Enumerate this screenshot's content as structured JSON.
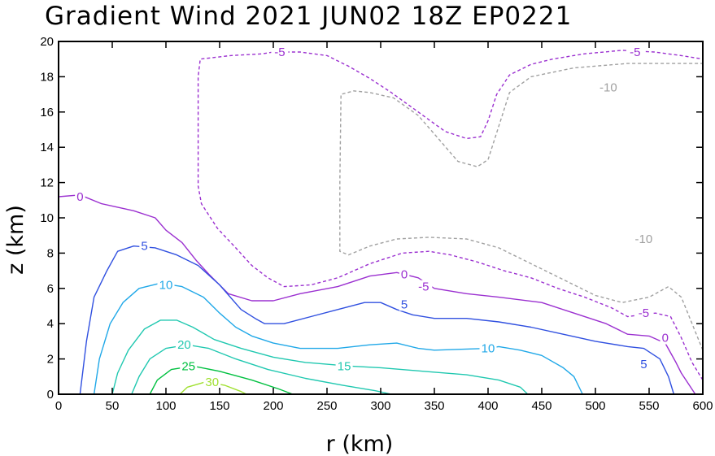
{
  "chart_data": {
    "type": "contour",
    "title": "Gradient Wind 2021 JUN02 18Z   EP0221",
    "xlabel": "r (km)",
    "ylabel": "z (km)",
    "xlim": [
      0,
      600
    ],
    "ylim": [
      0,
      20
    ],
    "xticks": [
      0,
      50,
      100,
      150,
      200,
      250,
      300,
      350,
      400,
      450,
      500,
      550,
      600
    ],
    "yticks": [
      0,
      2,
      4,
      6,
      8,
      10,
      12,
      14,
      16,
      18,
      20
    ],
    "contours": [
      {
        "level": -10,
        "label": "-10",
        "color": "#a0a0a0",
        "dashed": true,
        "segments": [
          [
            [
              600,
              2.5
            ],
            [
              590,
              4
            ],
            [
              580,
              5.5
            ],
            [
              568,
              6.1
            ],
            [
              550,
              5.5
            ],
            [
              525,
              5.2
            ],
            [
              500,
              5.6
            ],
            [
              470,
              6.5
            ],
            [
              440,
              7.4
            ],
            [
              410,
              8.3
            ],
            [
              380,
              8.8
            ],
            [
              345,
              8.9
            ],
            [
              315,
              8.8
            ],
            [
              290,
              8.4
            ],
            [
              270,
              7.9
            ],
            [
              262,
              8.1
            ],
            [
              262,
              12
            ],
            [
              263,
              17
            ],
            [
              275,
              17.2
            ],
            [
              290,
              17.1
            ],
            [
              312,
              16.8
            ],
            [
              335,
              15.8
            ],
            [
              355,
              14.4
            ],
            [
              372,
              13.2
            ],
            [
              390,
              12.9
            ],
            [
              400,
              13.3
            ],
            [
              410,
              15.2
            ],
            [
              420,
              17.1
            ],
            [
              440,
              18.0
            ],
            [
              480,
              18.5
            ],
            [
              530,
              18.75
            ],
            [
              600,
              18.75
            ]
          ]
        ],
        "labels": [
          [
            545,
            8.8
          ],
          [
            512,
            17.4
          ]
        ]
      },
      {
        "level": -5,
        "label": "-5",
        "color": "#9b30d0",
        "dashed": true,
        "segments": [
          [
            [
              600,
              0.8
            ],
            [
              590,
              1.8
            ],
            [
              580,
              3.2
            ],
            [
              570,
              4.4
            ],
            [
              556,
              4.6
            ],
            [
              530,
              4.4
            ],
            [
              515,
              4.9
            ],
            [
              490,
              5.5
            ],
            [
              465,
              6.0
            ],
            [
              440,
              6.6
            ],
            [
              415,
              7.0
            ],
            [
              390,
              7.5
            ],
            [
              365,
              7.9
            ],
            [
              345,
              8.1
            ],
            [
              320,
              8.0
            ],
            [
              290,
              7.4
            ],
            [
              260,
              6.6
            ],
            [
              235,
              6.2
            ],
            [
              210,
              6.1
            ],
            [
              195,
              6.6
            ],
            [
              180,
              7.3
            ],
            [
              165,
              8.3
            ],
            [
              148,
              9.4
            ],
            [
              133,
              10.8
            ],
            [
              130,
              11.8
            ],
            [
              130,
              15
            ],
            [
              130,
              18
            ],
            [
              132,
              19.0
            ],
            [
              160,
              19.2
            ],
            [
              190,
              19.3
            ],
            [
              200,
              19.4
            ],
            [
              225,
              19.4
            ],
            [
              250,
              19.2
            ],
            [
              270,
              18.6
            ],
            [
              290,
              17.9
            ],
            [
              310,
              17.1
            ],
            [
              335,
              16.0
            ],
            [
              360,
              14.9
            ],
            [
              380,
              14.5
            ],
            [
              393,
              14.6
            ],
            [
              400,
              15.5
            ],
            [
              408,
              17.0
            ],
            [
              420,
              18.1
            ],
            [
              440,
              18.7
            ],
            [
              460,
              19.0
            ],
            [
              490,
              19.3
            ],
            [
              525,
              19.5
            ],
            [
              555,
              19.4
            ],
            [
              580,
              19.2
            ],
            [
              600,
              19.0
            ]
          ]
        ],
        "labels": [
          [
            545,
            4.6
          ],
          [
            537,
            19.4
          ],
          [
            340,
            6.1
          ],
          [
            206,
            19.4
          ]
        ]
      },
      {
        "level": 0,
        "label": "0",
        "color": "#9b30d0",
        "dashed": false,
        "segments": [
          [
            [
              0,
              11.2
            ],
            [
              20,
              11.3
            ],
            [
              40,
              10.8
            ],
            [
              70,
              10.4
            ],
            [
              90,
              10.0
            ],
            [
              100,
              9.3
            ],
            [
              115,
              8.6
            ],
            [
              128,
              7.6
            ],
            [
              140,
              6.8
            ],
            [
              158,
              5.7
            ],
            [
              180,
              5.3
            ],
            [
              200,
              5.3
            ],
            [
              225,
              5.7
            ],
            [
              260,
              6.1
            ],
            [
              290,
              6.7
            ],
            [
              315,
              6.9
            ],
            [
              335,
              6.6
            ],
            [
              350,
              6.0
            ],
            [
              380,
              5.7
            ],
            [
              410,
              5.5
            ],
            [
              450,
              5.2
            ],
            [
              480,
              4.6
            ],
            [
              510,
              4.0
            ],
            [
              530,
              3.4
            ],
            [
              550,
              3.3
            ],
            [
              565,
              2.9
            ],
            [
              575,
              1.8
            ],
            [
              580,
              1.2
            ],
            [
              593,
              0
            ]
          ]
        ],
        "labels": [
          [
            20,
            11.2
          ],
          [
            322,
            6.8
          ],
          [
            565,
            3.2
          ]
        ]
      },
      {
        "level": 5,
        "label": "5",
        "color": "#3050e0",
        "dashed": false,
        "segments": [
          [
            [
              20,
              0
            ],
            [
              26,
              3
            ],
            [
              33,
              5.5
            ],
            [
              45,
              7.0
            ],
            [
              55,
              8.1
            ],
            [
              70,
              8.4
            ],
            [
              90,
              8.3
            ],
            [
              110,
              7.9
            ],
            [
              130,
              7.3
            ],
            [
              150,
              6.2
            ],
            [
              170,
              4.8
            ],
            [
              183,
              4.3
            ],
            [
              192,
              4.0
            ],
            [
              210,
              4.0
            ],
            [
              235,
              4.4
            ],
            [
              260,
              4.8
            ],
            [
              285,
              5.2
            ],
            [
              300,
              5.2
            ],
            [
              315,
              4.8
            ],
            [
              330,
              4.5
            ],
            [
              350,
              4.3
            ],
            [
              380,
              4.3
            ],
            [
              410,
              4.1
            ],
            [
              440,
              3.8
            ],
            [
              470,
              3.4
            ],
            [
              500,
              3.0
            ],
            [
              530,
              2.7
            ],
            [
              545,
              2.6
            ],
            [
              560,
              2.0
            ],
            [
              568,
              1.0
            ],
            [
              573,
              0
            ]
          ]
        ],
        "labels": [
          [
            80,
            8.4
          ],
          [
            322,
            5.1
          ],
          [
            545,
            1.7
          ]
        ]
      },
      {
        "level": 10,
        "label": "10",
        "color": "#20a8e8",
        "dashed": false,
        "segments": [
          [
            [
              33,
              0
            ],
            [
              38,
              2
            ],
            [
              48,
              4
            ],
            [
              60,
              5.2
            ],
            [
              75,
              6.0
            ],
            [
              95,
              6.3
            ],
            [
              115,
              6.1
            ],
            [
              135,
              5.5
            ],
            [
              150,
              4.6
            ],
            [
              165,
              3.8
            ],
            [
              180,
              3.3
            ],
            [
              200,
              2.9
            ],
            [
              225,
              2.6
            ],
            [
              260,
              2.6
            ],
            [
              290,
              2.8
            ],
            [
              315,
              2.9
            ],
            [
              335,
              2.6
            ],
            [
              350,
              2.5
            ],
            [
              400,
              2.6
            ],
            [
              410,
              2.7
            ],
            [
              430,
              2.5
            ],
            [
              450,
              2.2
            ],
            [
              470,
              1.5
            ],
            [
              480,
              1.0
            ],
            [
              488,
              0
            ]
          ]
        ],
        "labels": [
          [
            100,
            6.2
          ],
          [
            400,
            2.6
          ]
        ]
      },
      {
        "level": 15,
        "label": "15",
        "color": "#20c8b0",
        "dashed": false,
        "segments": [
          [
            [
              50,
              0
            ],
            [
              55,
              1.2
            ],
            [
              65,
              2.5
            ],
            [
              80,
              3.7
            ],
            [
              95,
              4.2
            ],
            [
              110,
              4.2
            ],
            [
              125,
              3.8
            ],
            [
              145,
              3.1
            ],
            [
              170,
              2.6
            ],
            [
              200,
              2.1
            ],
            [
              230,
              1.8
            ],
            [
              270,
              1.6
            ],
            [
              300,
              1.5
            ],
            [
              340,
              1.3
            ],
            [
              380,
              1.1
            ],
            [
              410,
              0.8
            ],
            [
              430,
              0.4
            ],
            [
              437,
              0
            ]
          ]
        ],
        "labels": [
          [
            266,
            1.6
          ]
        ]
      },
      {
        "level": 20,
        "label": "20",
        "color": "#20c8b0",
        "dashed": false,
        "segments": [
          [
            [
              68,
              0
            ],
            [
              75,
              1.0
            ],
            [
              85,
              2.0
            ],
            [
              100,
              2.6
            ],
            [
              120,
              2.8
            ],
            [
              140,
              2.6
            ],
            [
              165,
              2.0
            ],
            [
              195,
              1.4
            ],
            [
              230,
              0.9
            ],
            [
              265,
              0.5
            ],
            [
              295,
              0.2
            ],
            [
              310,
              0
            ]
          ]
        ],
        "labels": [
          [
            117,
            2.8
          ]
        ]
      },
      {
        "level": 25,
        "label": "25",
        "color": "#00c040",
        "dashed": false,
        "segments": [
          [
            [
              85,
              0
            ],
            [
              92,
              0.8
            ],
            [
              105,
              1.4
            ],
            [
              125,
              1.6
            ],
            [
              150,
              1.3
            ],
            [
              180,
              0.8
            ],
            [
              205,
              0.3
            ],
            [
              218,
              0
            ]
          ]
        ],
        "labels": [
          [
            121,
            1.6
          ]
        ]
      },
      {
        "level": 30,
        "label": "30",
        "color": "#a0e030",
        "dashed": false,
        "segments": [
          [
            [
              113,
              0
            ],
            [
              120,
              0.4
            ],
            [
              137,
              0.7
            ],
            [
              155,
              0.5
            ],
            [
              170,
              0.15
            ],
            [
              175,
              0
            ]
          ]
        ],
        "labels": [
          [
            143,
            0.7
          ]
        ]
      }
    ]
  }
}
